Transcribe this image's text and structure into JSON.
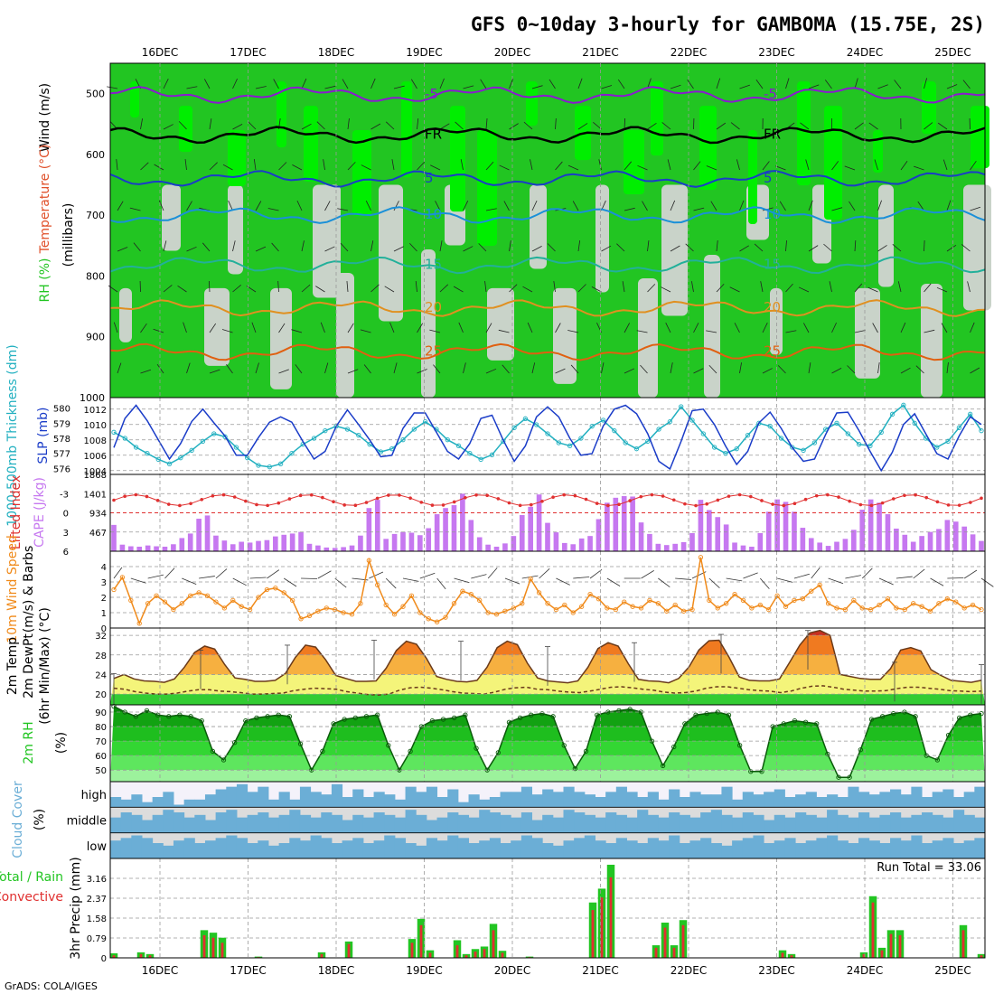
{
  "title": "GFS 0~10day 3-hourly for GAMBOMA (15.75E, 2S)",
  "credit": "GrADS: COLA/IGES",
  "run_total": "Run Total = 33.06",
  "colors": {
    "rh": "#22c522",
    "rh_high": "#00ee00",
    "rh_grey": "#c9d3c9",
    "temp": "#e0502a",
    "wind": "#f08a1a",
    "cape": "#c678f0",
    "li": "#e03030",
    "slp": "#1a3cc8",
    "thick": "#22b0c0",
    "cloud": "#6baed6",
    "cloud_bg": "#dcdcdc",
    "precip_total": "#22c522",
    "precip_conv": "#e03030"
  },
  "panel_labels": {
    "upper_wind": "Wind (m/s)",
    "upper_temp": "Temperature (°C)",
    "upper_rh": "RH (%)",
    "upper_units": "(millibars)",
    "thick": "1000-500mb Thickness (dm)",
    "slp": "SLP (mb)",
    "li": "Lifted Index",
    "cape": "CAPE (J/kg)",
    "wind10": "10m Wind Speed",
    "barbs": "(m/s) & Barbs",
    "temp2m_a": "2m Temp",
    "temp2m_b": "2m DewPt",
    "temp2m_c": "(6hr Min/Max) (°C)",
    "rh2m": "2m RH",
    "rh2m_unit": "(%)",
    "cloud": "Cloud Cover",
    "cloud_unit": "(%)",
    "cloud_high": "high",
    "cloud_middle": "middle",
    "cloud_low": "low",
    "precip_a": "Total / Rain",
    "precip_b": "Convective",
    "precip_unit": "3hr Precip (mm)"
  },
  "chart_data": [
    {
      "type": "heatmap",
      "title": "Upper air RH, temperature and wind",
      "dates": [
        "16DEC",
        "17DEC",
        "18DEC",
        "19DEC",
        "20DEC",
        "21DEC",
        "22DEC",
        "23DEC",
        "24DEC",
        "25DEC"
      ],
      "pressure_ticks": [
        500,
        600,
        700,
        800,
        900,
        1000
      ],
      "ylim": [
        1000,
        450
      ],
      "isotherms": [
        {
          "label": "-5",
          "values": [
            -5
          ]
        },
        {
          "label": "FR",
          "values": [
            0
          ]
        },
        {
          "label": "5",
          "values": [
            5
          ]
        },
        {
          "label": "10",
          "values": [
            10
          ]
        },
        {
          "label": "15",
          "values": [
            15
          ]
        },
        {
          "label": "20",
          "values": [
            20
          ]
        },
        {
          "label": "25",
          "values": [
            25
          ]
        }
      ],
      "isotherm_pressure_mb": {
        "-5": 502,
        "FR": 568,
        "5": 640,
        "10": 700,
        "15": 782,
        "20": 853,
        "25": 925
      }
    },
    {
      "type": "line",
      "title": "SLP and 1000-500mb Thickness",
      "slp_ticks": [
        1004,
        1006,
        1008,
        1010,
        1012
      ],
      "thick_ticks": [
        576,
        577,
        578,
        579,
        580
      ],
      "slp_ylim": [
        1003.5,
        1013.5
      ],
      "thick_ylim": [
        575.6,
        580.7
      ],
      "slp_values": [
        1007.0,
        1010.8,
        1012.5,
        1010.5,
        1008.0,
        1005.5,
        1007.5,
        1010.4,
        1012.0,
        1010.2,
        1008.5,
        1006.0,
        1006.0,
        1008.3,
        1010.3,
        1011.0,
        1010.3,
        1007.8,
        1005.5,
        1006.5,
        1009.8,
        1011.9,
        1010.0,
        1008.0,
        1005.8,
        1006.0,
        1009.5,
        1011.5,
        1011.5,
        1009.0,
        1006.5,
        1005.5,
        1007.5,
        1010.8,
        1011.2,
        1008.0,
        1005.2,
        1007.2,
        1011.0,
        1012.3,
        1011.0,
        1008.2,
        1006.0,
        1006.2,
        1009.8,
        1012.0,
        1012.5,
        1011.4,
        1008.8,
        1005.2,
        1004.2,
        1007.8,
        1011.8,
        1012.0,
        1010.0,
        1007.2,
        1004.8,
        1006.5,
        1010.2,
        1011.6,
        1009.5,
        1007.0,
        1005.2,
        1005.5,
        1008.7,
        1011.5,
        1011.6,
        1009.2,
        1006.5,
        1004.0,
        1006.4,
        1010.0,
        1011.4,
        1008.8,
        1006.2,
        1005.5,
        1008.5,
        1011.0,
        1010.0
      ],
      "thick_values": [
        578.4,
        578.0,
        577.4,
        577.0,
        576.6,
        576.3,
        576.7,
        577.2,
        577.8,
        578.3,
        578.1,
        577.4,
        576.7,
        576.2,
        576.1,
        576.3,
        577.0,
        577.6,
        578.0,
        578.5,
        578.8,
        578.6,
        578.2,
        577.6,
        577.1,
        577.3,
        577.9,
        578.6,
        579.1,
        578.6,
        577.9,
        577.5,
        577.0,
        576.6,
        576.9,
        577.8,
        578.7,
        579.3,
        578.9,
        578.3,
        577.7,
        577.5,
        578.0,
        578.8,
        579.2,
        578.5,
        577.7,
        577.3,
        577.8,
        578.6,
        579.1,
        580.1,
        579.2,
        578.3,
        577.4,
        577.0,
        577.3,
        578.2,
        579.0,
        578.8,
        578.0,
        577.4,
        577.2,
        577.7,
        578.6,
        579.0,
        578.3,
        577.6,
        577.5,
        578.4,
        579.6,
        580.2,
        579.0,
        578.0,
        577.4,
        577.8,
        578.7,
        579.6,
        578.5
      ]
    },
    {
      "type": "bar",
      "title": "CAPE and Lifted Index",
      "cape_ticks": [
        467,
        934,
        1401,
        1868
      ],
      "li_ticks": [
        -3,
        0,
        3,
        6
      ],
      "cape_ylim": [
        0,
        1868
      ],
      "li_ylim": [
        6,
        -6
      ],
      "cape_values": [
        640,
        160,
        120,
        110,
        140,
        120,
        110,
        170,
        320,
        430,
        790,
        870,
        380,
        260,
        170,
        230,
        210,
        250,
        270,
        360,
        400,
        430,
        470,
        180,
        140,
        90,
        80,
        100,
        140,
        380,
        1050,
        1250,
        300,
        420,
        470,
        450,
        390,
        560,
        900,
        1050,
        1120,
        1400,
        760,
        340,
        160,
        110,
        190,
        370,
        880,
        1080,
        1380,
        690,
        460,
        200,
        170,
        310,
        370,
        780,
        1180,
        1300,
        1340,
        1330,
        700,
        420,
        180,
        150,
        180,
        220,
        440,
        1250,
        1000,
        830,
        650,
        210,
        140,
        110,
        440,
        960,
        1260,
        1200,
        960,
        570,
        320,
        210,
        130,
        230,
        300,
        520,
        1010,
        1260,
        1180,
        900,
        550,
        400,
        230,
        370,
        470,
        540,
        760,
        720,
        600,
        410,
        250
      ]
    },
    {
      "type": "line",
      "title": "10m Wind Speed",
      "ticks": [
        0,
        1,
        2,
        3,
        4
      ],
      "ylim": [
        0,
        5.0
      ],
      "values": [
        2.5,
        3.3,
        1.8,
        0.3,
        1.6,
        2.1,
        1.7,
        1.2,
        1.6,
        2.1,
        2.3,
        2.1,
        1.7,
        1.3,
        1.8,
        1.4,
        1.2,
        2.0,
        2.5,
        2.6,
        2.3,
        1.8,
        0.6,
        0.8,
        1.1,
        1.3,
        1.2,
        1.0,
        0.9,
        1.6,
        4.4,
        2.8,
        1.5,
        0.9,
        1.4,
        2.1,
        1.0,
        0.6,
        0.4,
        0.7,
        1.6,
        2.4,
        2.2,
        1.8,
        1.0,
        0.9,
        1.1,
        1.3,
        1.6,
        3.2,
        2.3,
        1.6,
        1.2,
        1.5,
        1.0,
        1.4,
        2.2,
        1.9,
        1.3,
        1.2,
        1.7,
        1.4,
        1.3,
        1.8,
        1.6,
        1.1,
        1.5,
        1.1,
        1.2,
        4.6,
        1.8,
        1.3,
        1.6,
        2.2,
        1.8,
        1.3,
        1.5,
        1.2,
        2.1,
        1.4,
        1.8,
        1.9,
        2.4,
        2.8,
        1.6,
        1.3,
        1.2,
        1.8,
        1.3,
        1.2,
        1.5,
        1.9,
        1.3,
        1.2,
        1.6,
        1.4,
        1.1,
        1.6,
        1.9,
        1.7,
        1.3,
        1.5,
        1.2
      ]
    },
    {
      "type": "area",
      "title": "2m Temp / DewPt",
      "ticks": [
        20,
        24,
        28,
        32
      ],
      "ylim": [
        17.8,
        33.5
      ],
      "temp_values": [
        23.2,
        24.0,
        23.1,
        22.7,
        22.6,
        22.4,
        23.1,
        25.5,
        28.5,
        29.8,
        29.2,
        26.0,
        23.3,
        23.0,
        22.6,
        22.6,
        22.8,
        24.2,
        27.5,
        30.0,
        29.6,
        27.0,
        23.8,
        23.2,
        22.6,
        22.6,
        22.7,
        25.3,
        28.9,
        30.8,
        30.2,
        27.3,
        23.6,
        23.0,
        22.6,
        22.5,
        22.8,
        25.5,
        29.5,
        30.8,
        30.1,
        26.3,
        23.3,
        22.7,
        22.5,
        22.3,
        22.7,
        25.5,
        29.3,
        30.5,
        29.8,
        26.2,
        23.0,
        22.7,
        22.6,
        22.3,
        23.2,
        25.5,
        29.0,
        30.9,
        31.0,
        27.5,
        23.5,
        22.8,
        22.7,
        22.7,
        23.1,
        26.5,
        30.0,
        32.5,
        33.0,
        32.0,
        24.0,
        23.6,
        23.2,
        23.0,
        23.0,
        25.2,
        29.0,
        29.5,
        28.8,
        25.0,
        23.8,
        22.8,
        22.6,
        22.4,
        22.8
      ],
      "dewpt_values": [
        21.2,
        21.0,
        20.5,
        20.2,
        20.0,
        20.0,
        20.2,
        20.6,
        20.9,
        20.9,
        20.6,
        20.5,
        20.3,
        20.0,
        20.0,
        20.1,
        20.2,
        20.7,
        21.0,
        21.2,
        21.1,
        21.0,
        20.5,
        20.2,
        19.9,
        19.8,
        20.0,
        20.8,
        21.3,
        21.4,
        21.2,
        20.9,
        20.5,
        20.2,
        20.1,
        20.0,
        20.4,
        21.0,
        21.3,
        21.4,
        21.0,
        20.9,
        20.6,
        20.4,
        20.3,
        20.6,
        21.0,
        21.4,
        21.5,
        21.3,
        21.0,
        20.8,
        20.4,
        20.2,
        20.3,
        20.6,
        21.2,
        21.5,
        21.5,
        21.2,
        20.9,
        20.7,
        20.6,
        20.3,
        20.6,
        21.2,
        21.6,
        21.7,
        21.4,
        21.0,
        20.8,
        20.6,
        20.6,
        20.7,
        21.1,
        21.4,
        21.4,
        21.2,
        21.0,
        20.7,
        20.6,
        20.5,
        20.6
      ],
      "max_values": [
        24.2,
        null,
        null,
        null,
        29.0,
        null,
        null,
        null,
        30.0,
        null,
        null,
        null,
        31.0,
        null,
        null,
        null,
        30.8,
        null,
        null,
        null,
        29.7,
        null,
        null,
        null,
        30.5,
        null,
        null,
        null,
        32.2,
        null,
        null,
        null,
        33.0,
        null,
        null,
        null,
        26.5,
        null,
        null,
        null,
        26.0
      ]
    },
    {
      "type": "area",
      "title": "2m RH",
      "ticks": [
        50,
        60,
        70,
        80,
        90
      ],
      "ylim": [
        42,
        95
      ],
      "values": [
        94,
        90,
        87,
        91,
        88,
        87,
        88,
        87,
        84,
        63,
        57,
        69,
        84,
        86,
        87,
        88,
        87,
        68,
        50,
        63,
        82,
        85,
        86,
        87,
        88,
        67,
        50,
        63,
        80,
        84,
        85,
        86,
        88,
        65,
        50,
        62,
        83,
        86,
        88,
        89,
        87,
        67,
        51,
        63,
        88,
        90,
        91,
        92,
        90,
        70,
        53,
        66,
        82,
        88,
        89,
        90,
        88,
        67,
        49,
        49,
        80,
        82,
        84,
        83,
        82,
        61,
        45,
        45,
        64,
        85,
        87,
        89,
        90,
        87,
        60,
        57,
        74,
        86,
        88,
        89
      ]
    },
    {
      "type": "bar",
      "title": "Cloud Cover",
      "rows": [
        "high",
        "middle",
        "low"
      ],
      "high_values": [
        40,
        30,
        50,
        20,
        40,
        60,
        10,
        30,
        30,
        50,
        70,
        80,
        90,
        60,
        80,
        30,
        60,
        30,
        80,
        60,
        50,
        90,
        40,
        70,
        40,
        60,
        50,
        30,
        80,
        60,
        80,
        40,
        70,
        20,
        50,
        30,
        40,
        60,
        60,
        80,
        50,
        70,
        60,
        80,
        60,
        50,
        40,
        60,
        80,
        60,
        40,
        60,
        30,
        70,
        40,
        60,
        50,
        50,
        80,
        30,
        60,
        50,
        60,
        70,
        40,
        50,
        60,
        40,
        50,
        40,
        80,
        60,
        50,
        60,
        70,
        50,
        80,
        40,
        60,
        70,
        40,
        60,
        80
      ],
      "middle_values": [
        60,
        80,
        70,
        50,
        70,
        90,
        80,
        60,
        70,
        50,
        80,
        90,
        60,
        70,
        80,
        60,
        70,
        90,
        70,
        60,
        80,
        70,
        50,
        70,
        60,
        80,
        70,
        60,
        90,
        70,
        50,
        60,
        80,
        70,
        60,
        90,
        80,
        70,
        60,
        80,
        50,
        70,
        60,
        90,
        80,
        70,
        60,
        80,
        70,
        60,
        90,
        70,
        60,
        80,
        70,
        60,
        80,
        90,
        70,
        60,
        80,
        70,
        50,
        70,
        60,
        80,
        70,
        60,
        90,
        70,
        60,
        80,
        60,
        70,
        80,
        60,
        70,
        80,
        70,
        60,
        90,
        70,
        60
      ],
      "low_values": [
        70,
        80,
        90,
        80,
        60,
        50,
        70,
        80,
        60,
        70,
        80,
        90,
        80,
        60,
        70,
        50,
        60,
        80,
        70,
        90,
        80,
        60,
        70,
        80,
        60,
        70,
        90,
        80,
        60,
        50,
        80,
        70,
        90,
        80,
        60,
        70,
        80,
        60,
        70,
        90,
        80,
        60,
        50,
        70,
        80,
        90,
        70,
        60,
        80,
        70,
        60,
        80,
        70,
        90,
        60,
        70,
        80,
        60,
        50,
        70,
        80,
        90,
        60,
        70,
        80,
        60,
        70,
        80,
        90,
        70,
        60,
        80,
        70,
        60,
        80,
        70,
        90,
        60,
        70,
        80,
        60,
        70,
        80
      ]
    },
    {
      "type": "bar",
      "title": "3hr Precip",
      "ticks": [
        0,
        0.79,
        1.58,
        2.37,
        3.16
      ],
      "ylim": [
        0,
        3.95
      ],
      "total_values": [
        0.18,
        0,
        0,
        0.22,
        0.15,
        0,
        0,
        0,
        0,
        0,
        1.1,
        1.0,
        0.8,
        0,
        0,
        0,
        0.05,
        0,
        0,
        0,
        0,
        0,
        0,
        0.22,
        0,
        0,
        0.65,
        0,
        0,
        0,
        0,
        0,
        0,
        0.75,
        1.55,
        0.3,
        0,
        0,
        0.7,
        0.15,
        0.35,
        0.45,
        1.35,
        0.28,
        0,
        0,
        0.05,
        0,
        0,
        0,
        0,
        0,
        0,
        2.2,
        2.75,
        3.7,
        0,
        0,
        0,
        0,
        0.5,
        1.4,
        0.5,
        1.5,
        0,
        0,
        0,
        0,
        0,
        0,
        0,
        0,
        0,
        0,
        0.3,
        0.15,
        0,
        0,
        0,
        0,
        0,
        0,
        0,
        0.22,
        2.45,
        0.4,
        1.1,
        1.1,
        0,
        0,
        0,
        0,
        0,
        0,
        1.3,
        0,
        0.15
      ],
      "conv_values": [
        0.1,
        0,
        0,
        0.15,
        0.1,
        0,
        0,
        0,
        0,
        0,
        0.9,
        0.8,
        0.6,
        0,
        0,
        0,
        0.03,
        0,
        0,
        0,
        0,
        0,
        0,
        0.15,
        0,
        0,
        0.55,
        0,
        0,
        0,
        0,
        0,
        0,
        0.6,
        1.3,
        0.2,
        0,
        0,
        0.5,
        0.1,
        0.25,
        0.35,
        1.1,
        0.2,
        0,
        0,
        0.03,
        0,
        0,
        0,
        0,
        0,
        0,
        1.9,
        2.4,
        3.2,
        0,
        0,
        0,
        0,
        0.4,
        1.2,
        0.4,
        1.3,
        0,
        0,
        0,
        0,
        0,
        0,
        0,
        0,
        0,
        0,
        0.2,
        0.1,
        0,
        0,
        0,
        0,
        0,
        0,
        0,
        0.15,
        2.2,
        0.3,
        0.95,
        0.9,
        0,
        0,
        0,
        0,
        0,
        0,
        1.1,
        0,
        0.1
      ]
    }
  ]
}
